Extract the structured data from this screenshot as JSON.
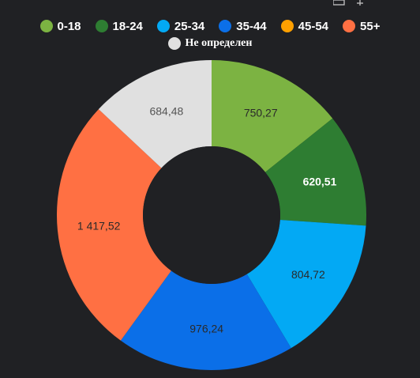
{
  "chart_data": {
    "type": "pie",
    "donut": true,
    "legend_position": "top",
    "categories": [
      "0-18",
      "18-24",
      "25-34",
      "35-44",
      "45-54",
      "55+",
      "Не определен"
    ],
    "values": [
      750.27,
      620.51,
      804.72,
      976.24,
      0,
      1417.52,
      684.48
    ],
    "value_labels": [
      "750,27",
      "620,51",
      "804,72",
      "976,24",
      "",
      "1 417,52",
      "684,48"
    ],
    "colors": [
      "#7cb342",
      "#2e7d32",
      "#03a9f4",
      "#0b6fe8",
      "#ffa000",
      "#ff7043",
      "#e0e0e0"
    ],
    "label_colors": [
      "#2a2a2a",
      "#ffffff",
      "#2a2a2a",
      "#2a2a2a",
      "#2a2a2a",
      "#2a2a2a",
      "#555555"
    ]
  }
}
